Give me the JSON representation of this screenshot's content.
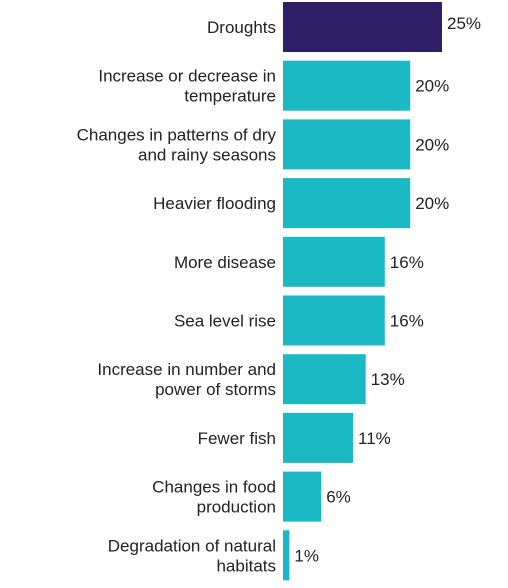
{
  "chart_data": {
    "type": "bar",
    "orientation": "horizontal",
    "categories": [
      "Droughts",
      "Increase or decrease in temperature",
      "Changes in patterns of dry and rainy seasons",
      "Heavier flooding",
      "More disease",
      "Sea level rise",
      "Increase in number and power of storms",
      "Fewer fish",
      "Changes in food production",
      "Degradation of natural habitats"
    ],
    "category_lines": [
      [
        "Droughts"
      ],
      [
        "Increase or decrease in",
        "temperature"
      ],
      [
        "Changes in patterns of dry",
        "and rainy seasons"
      ],
      [
        "Heavier flooding"
      ],
      [
        "More disease"
      ],
      [
        "Sea level rise"
      ],
      [
        "Increase in number and",
        "power of storms"
      ],
      [
        "Fewer fish"
      ],
      [
        "Changes in food",
        "production"
      ],
      [
        "Degradation of natural",
        "habitats"
      ]
    ],
    "values": [
      25,
      20,
      20,
      20,
      16,
      16,
      13,
      11,
      6,
      1
    ],
    "value_labels": [
      "25%",
      "20%",
      "20%",
      "20%",
      "16%",
      "16%",
      "13%",
      "11%",
      "6%",
      "1%"
    ],
    "highlight_index": 0,
    "colors": {
      "highlight": "#2e1f66",
      "default": "#1ab9c4"
    },
    "title": "",
    "xlabel": "",
    "ylabel": "",
    "xlim": [
      0,
      25
    ]
  }
}
